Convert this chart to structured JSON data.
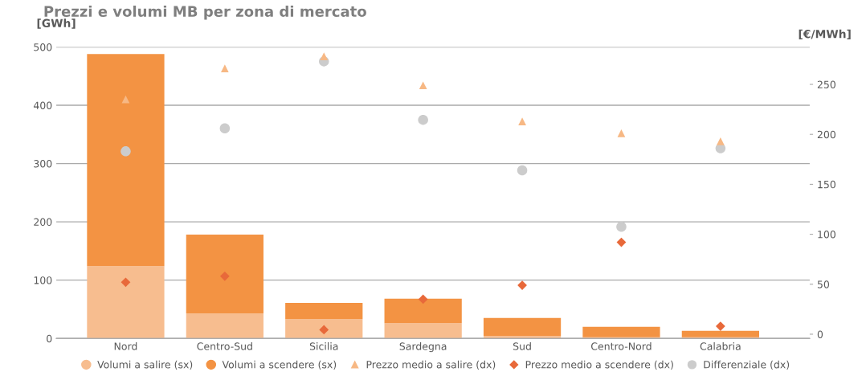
{
  "chart_data": {
    "type": "bar",
    "title": "Prezzi e volumi MB per zona di mercato",
    "ylabel": "[GWh]",
    "y2label": "[€/MWh]",
    "categories": [
      "Nord",
      "Centro-Sud",
      "Sicilia",
      "Sardegna",
      "Sud",
      "Centro-Nord",
      "Calabria"
    ],
    "stacked": true,
    "ylim": [
      0,
      500
    ],
    "yticks": [
      0,
      100,
      200,
      300,
      400,
      500
    ],
    "y2lim": [
      -4.2,
      287.4
    ],
    "y2ticks": [
      0,
      50,
      100,
      150,
      200,
      250
    ],
    "grid": "y",
    "legend": "bottom",
    "series": [
      {
        "name": "Volumi a salire (sx)",
        "color": "#f7bd8f",
        "values": [
          124,
          43,
          33,
          26,
          4,
          2,
          2
        ]
      },
      {
        "name": "Volumi a scendere (sx)",
        "color": "#f39343",
        "values": [
          364,
          135,
          28,
          42,
          31,
          18,
          11
        ]
      },
      {
        "name": "Prezzo medio a salire (dx)",
        "type": "scatter",
        "axis": "y2",
        "marker": "triangle",
        "color": "#f7b884",
        "values": [
          235,
          266,
          278,
          249,
          213,
          201,
          193
        ]
      },
      {
        "name": "Prezzo medio a scendere (dx)",
        "type": "scatter",
        "axis": "y2",
        "marker": "diamond",
        "color": "#e8693a",
        "values": [
          52,
          58,
          4.5,
          35,
          49,
          92,
          8
        ]
      },
      {
        "name": "Differenziale (dx)",
        "type": "scatter",
        "axis": "y2",
        "marker": "circle",
        "color": "#cccccc",
        "values": [
          183,
          206,
          273,
          214.5,
          164,
          107.5,
          186
        ]
      }
    ]
  }
}
